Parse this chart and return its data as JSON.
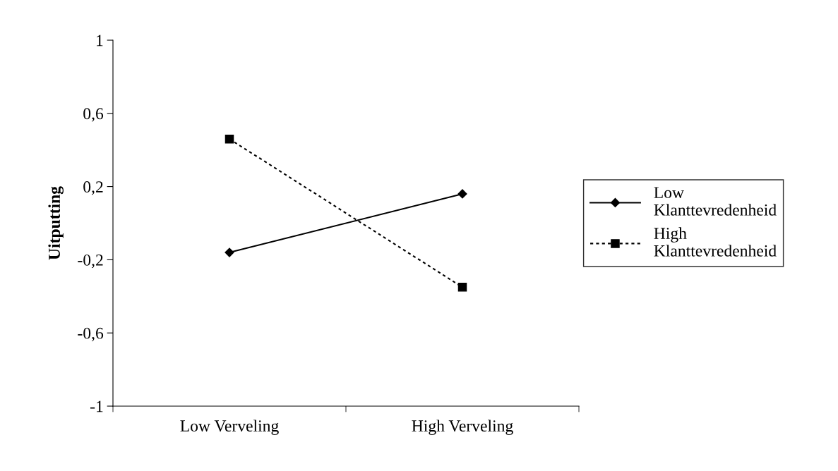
{
  "chart_data": {
    "type": "line",
    "ylabel": "Uitputting",
    "categories": [
      "Low Verveling",
      "High Verveling"
    ],
    "series": [
      {
        "name": "Low Klanttevredenheid",
        "color": "#000000",
        "marker": "diamond",
        "line_style": "solid",
        "values": [
          -0.16,
          0.16
        ]
      },
      {
        "name": "High Klanttevredenheid",
        "color": "#000000",
        "marker": "square",
        "line_style": "dotted",
        "values": [
          0.46,
          -0.35
        ]
      }
    ],
    "ylim": [
      -1,
      1
    ],
    "yticks": [
      {
        "value": -1,
        "label": "-1"
      },
      {
        "value": -0.6,
        "label": "-0,6"
      },
      {
        "value": -0.2,
        "label": "-0,2"
      },
      {
        "value": 0.2,
        "label": "0,2"
      },
      {
        "value": 0.6,
        "label": "0,6"
      },
      {
        "value": 1,
        "label": "1"
      }
    ],
    "grid": false,
    "legend": "right"
  }
}
